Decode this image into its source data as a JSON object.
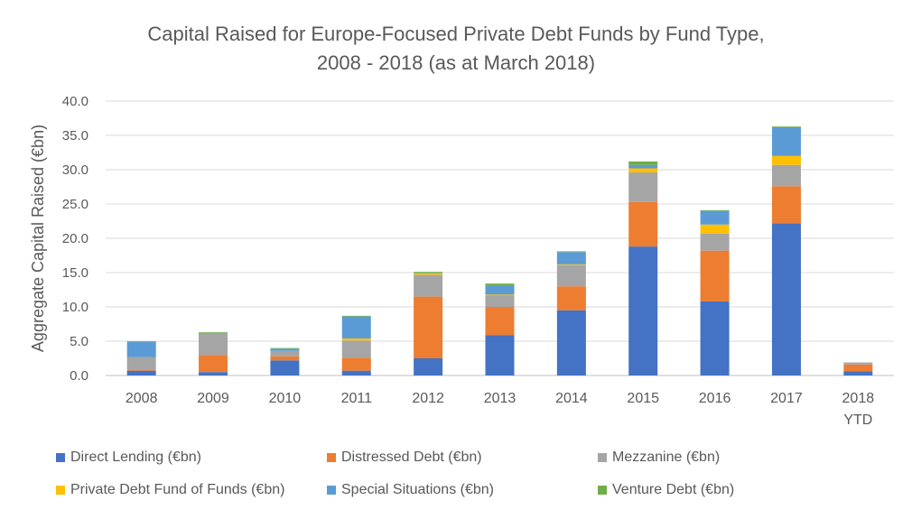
{
  "chart_data": {
    "type": "bar",
    "stacked": true,
    "title": "Capital Raised for Europe-Focused Private Debt Funds by Fund Type,",
    "subtitle": "2008 - 2018 (as at March 2018)",
    "ylabel": "Aggregate Capital Raised (€bn)",
    "xlabel": "",
    "ylim": [
      0,
      40
    ],
    "yticks": [
      "0.0",
      "5.0",
      "10.0",
      "15.0",
      "20.0",
      "25.0",
      "30.0",
      "35.0",
      "40.0"
    ],
    "grid": true,
    "legend_position": "bottom",
    "categories": [
      "2008",
      "2009",
      "2010",
      "2011",
      "2012",
      "2013",
      "2014",
      "2015",
      "2016",
      "2017",
      "2018 YTD"
    ],
    "category_lines": [
      [
        "2008"
      ],
      [
        "2009"
      ],
      [
        "2010"
      ],
      [
        "2011"
      ],
      [
        "2012"
      ],
      [
        "2013"
      ],
      [
        "2014"
      ],
      [
        "2015"
      ],
      [
        "2016"
      ],
      [
        "2017"
      ],
      [
        "2018",
        "YTD"
      ]
    ],
    "series": [
      {
        "name": "Direct Lending (€bn)",
        "color": "#4472C4",
        "values": [
          0.7,
          0.5,
          2.2,
          0.7,
          2.5,
          5.9,
          9.5,
          18.8,
          10.8,
          22.2,
          0.6
        ]
      },
      {
        "name": "Distressed Debt (€bn)",
        "color": "#ED7D31",
        "values": [
          0.1,
          2.5,
          0.6,
          1.9,
          9.0,
          4.1,
          3.5,
          6.5,
          7.4,
          5.4,
          1.0
        ]
      },
      {
        "name": "Mezzanine (€bn)",
        "color": "#A5A5A5",
        "values": [
          1.9,
          3.1,
          0.8,
          2.5,
          3.2,
          1.7,
          3.1,
          4.3,
          2.5,
          3.1,
          0.3
        ]
      },
      {
        "name": "Private Debt Fund of Funds (€bn)",
        "color": "#FFC000",
        "values": [
          0.0,
          0.0,
          0.0,
          0.3,
          0.2,
          0.1,
          0.1,
          0.6,
          1.3,
          1.3,
          0.0
        ]
      },
      {
        "name": "Special Situations (€bn)",
        "color": "#5B9BD5",
        "values": [
          2.2,
          0.1,
          0.3,
          3.2,
          0.0,
          1.3,
          1.8,
          0.5,
          2.0,
          4.2,
          0.0
        ]
      },
      {
        "name": "Venture Debt (€bn)",
        "color": "#70AD47",
        "values": [
          0.1,
          0.1,
          0.1,
          0.1,
          0.2,
          0.3,
          0.1,
          0.5,
          0.1,
          0.1,
          0.0
        ]
      }
    ]
  }
}
